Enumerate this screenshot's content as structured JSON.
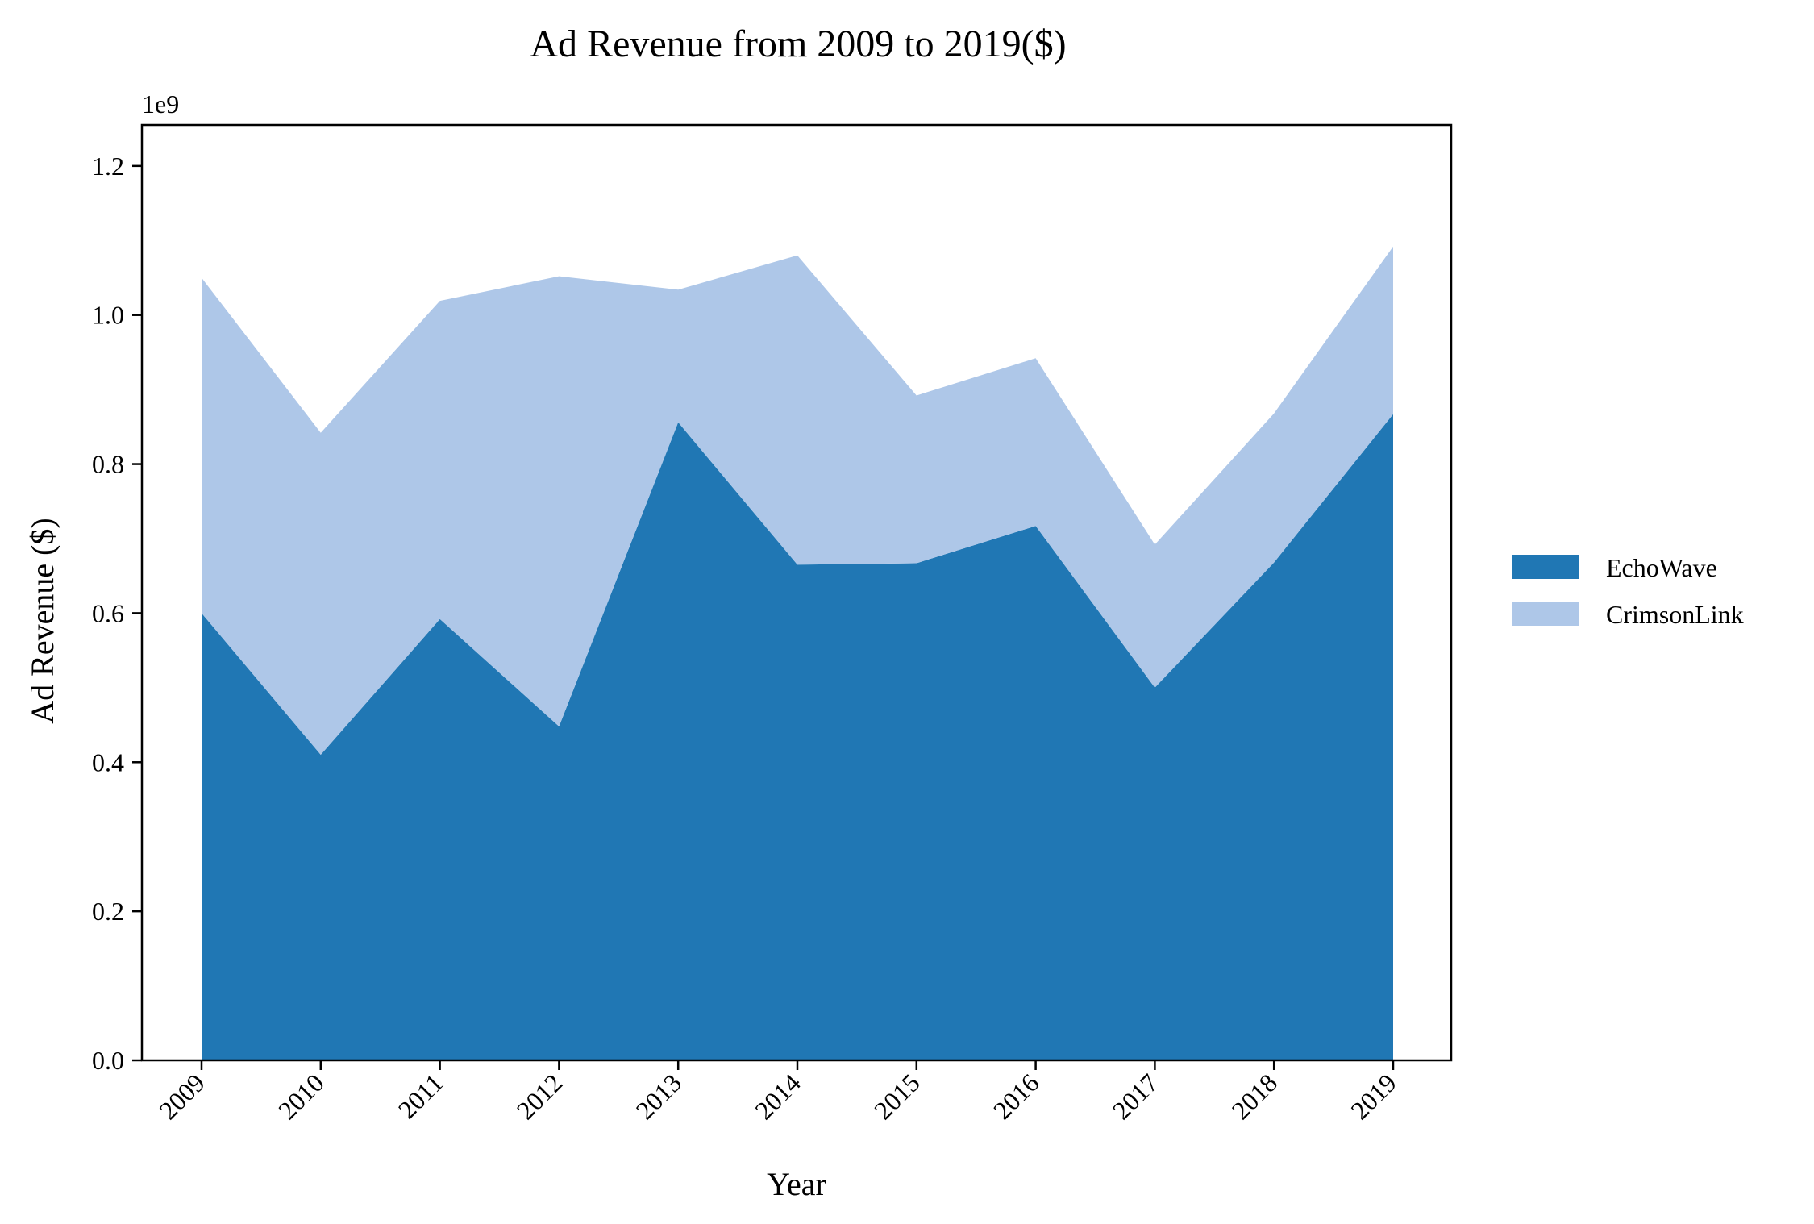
{
  "chart_data": {
    "type": "area",
    "stacked": true,
    "title": "Ad Revenue from 2009 to 2019($)",
    "xlabel": "Year",
    "ylabel": "Ad Revenue ($)",
    "y_offset_label": "1e9",
    "categories": [
      "2009",
      "2010",
      "2011",
      "2012",
      "2013",
      "2014",
      "2015",
      "2016",
      "2017",
      "2018",
      "2019"
    ],
    "series": [
      {
        "name": "EchoWave",
        "color": "#2077b4",
        "values": [
          600000000,
          410000000,
          592000000,
          448000000,
          856000000,
          665000000,
          667000000,
          717000000,
          500000000,
          668000000,
          867000000
        ]
      },
      {
        "name": "CrimsonLink",
        "color": "#aec7e8",
        "values": [
          450000000,
          432000000,
          427000000,
          604000000,
          178000000,
          415000000,
          225000000,
          225000000,
          192000000,
          200000000,
          225000000
        ]
      }
    ],
    "ylim": [
      0,
      1255000000
    ],
    "y_ticks": [
      0,
      200000000,
      400000000,
      600000000,
      800000000,
      1000000000,
      1200000000
    ],
    "y_tick_labels": [
      "0.0",
      "0.2",
      "0.4",
      "0.6",
      "0.8",
      "1.0",
      "1.2"
    ],
    "grid": false,
    "legend_position": "right"
  }
}
